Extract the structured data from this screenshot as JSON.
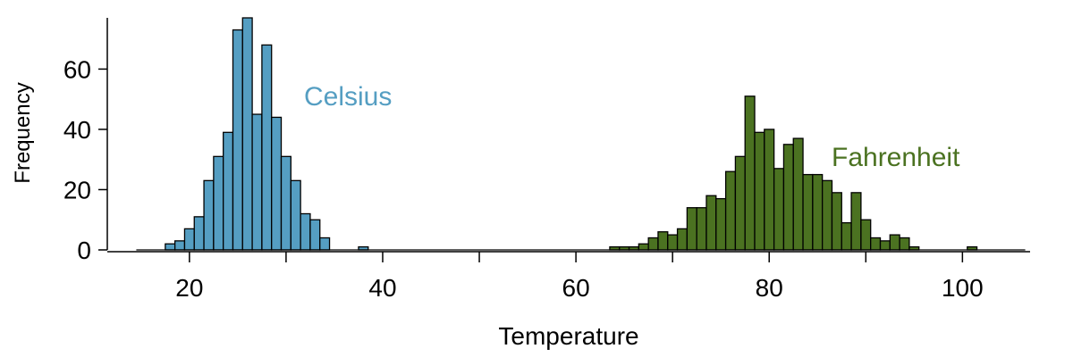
{
  "chart_data": {
    "type": "bar",
    "xlabel": "Temperature",
    "ylabel": "Frequency",
    "xlim": [
      11.5,
      107
    ],
    "ylim": [
      0,
      77
    ],
    "xticks": [
      20,
      40,
      60,
      80,
      100
    ],
    "xticks_unlabeled": [
      30,
      50,
      70,
      90
    ],
    "yticks": [
      0,
      20,
      40,
      60
    ],
    "bin_width": 1,
    "grid": false,
    "legend": "none",
    "series": [
      {
        "name": "Celsius",
        "color": "#559ec2",
        "x": [
          15,
          16,
          17,
          18,
          19,
          20,
          21,
          22,
          23,
          24,
          25,
          26,
          27,
          28,
          29,
          30,
          31,
          32,
          33,
          34,
          35,
          36,
          37,
          38,
          39,
          40,
          41,
          42,
          43,
          44,
          45,
          46,
          47,
          48,
          49,
          50,
          51,
          52,
          53,
          54,
          55,
          56,
          57,
          58,
          59,
          60,
          61,
          62,
          63
        ],
        "values": [
          0,
          0,
          0,
          2,
          3,
          7,
          11,
          23,
          31,
          39,
          73,
          77,
          45,
          68,
          44,
          31,
          23,
          12,
          10,
          4,
          0,
          0,
          0,
          1,
          0,
          0,
          0,
          0,
          0,
          0,
          0,
          0,
          0,
          0,
          0,
          0,
          0,
          0,
          0,
          0,
          0,
          0,
          0,
          0,
          0,
          0,
          0,
          0,
          0
        ]
      },
      {
        "name": "Fahrenheit",
        "color": "#4b7221",
        "x": [
          64,
          65,
          66,
          67,
          68,
          69,
          70,
          71,
          72,
          73,
          74,
          75,
          76,
          77,
          78,
          79,
          80,
          81,
          82,
          83,
          84,
          85,
          86,
          87,
          88,
          89,
          90,
          91,
          92,
          93,
          94,
          95,
          96,
          97,
          98,
          99,
          100,
          101,
          102,
          103,
          104,
          105,
          106
        ],
        "values": [
          1,
          1,
          1,
          2,
          4,
          6,
          5,
          7,
          14,
          14,
          18,
          17,
          26,
          31,
          51,
          39,
          40,
          27,
          35,
          37,
          25,
          25,
          23,
          19,
          9,
          19,
          10,
          4,
          3,
          5,
          4,
          1,
          0,
          0,
          0,
          0,
          0,
          1,
          0,
          0,
          0,
          0,
          0
        ]
      }
    ]
  }
}
